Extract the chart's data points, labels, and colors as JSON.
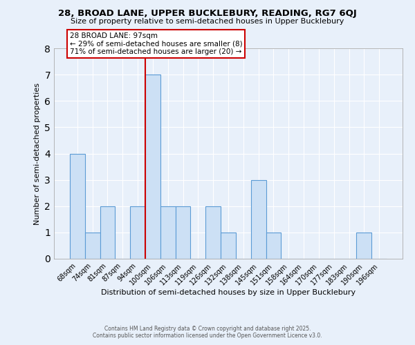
{
  "title": "28, BROAD LANE, UPPER BUCKLEBURY, READING, RG7 6QJ",
  "subtitle": "Size of property relative to semi-detached houses in Upper Bucklebury",
  "xlabel": "Distribution of semi-detached houses by size in Upper Bucklebury",
  "ylabel": "Number of semi-detached properties",
  "bin_labels": [
    "68sqm",
    "74sqm",
    "81sqm",
    "87sqm",
    "94sqm",
    "100sqm",
    "106sqm",
    "113sqm",
    "119sqm",
    "126sqm",
    "132sqm",
    "138sqm",
    "145sqm",
    "151sqm",
    "158sqm",
    "164sqm",
    "170sqm",
    "177sqm",
    "183sqm",
    "190sqm",
    "196sqm"
  ],
  "bar_heights": [
    4,
    1,
    2,
    0,
    2,
    7,
    2,
    2,
    0,
    2,
    1,
    0,
    3,
    1,
    0,
    0,
    0,
    0,
    0,
    1,
    0
  ],
  "bar_color": "#cce0f5",
  "bar_edge_color": "#5b9bd5",
  "background_color": "#e8f0fa",
  "grid_color": "#ffffff",
  "property_line_x": 4.5,
  "property_line_color": "#cc0000",
  "annotation_text": "28 BROAD LANE: 97sqm\n← 29% of semi-detached houses are smaller (8)\n71% of semi-detached houses are larger (20) →",
  "annotation_box_color": "#ffffff",
  "annotation_box_edge": "#cc0000",
  "ylim": [
    0,
    8
  ],
  "yticks": [
    0,
    1,
    2,
    3,
    4,
    5,
    6,
    7,
    8
  ],
  "footer_line1": "Contains HM Land Registry data © Crown copyright and database right 2025.",
  "footer_line2": "Contains public sector information licensed under the Open Government Licence v3.0."
}
